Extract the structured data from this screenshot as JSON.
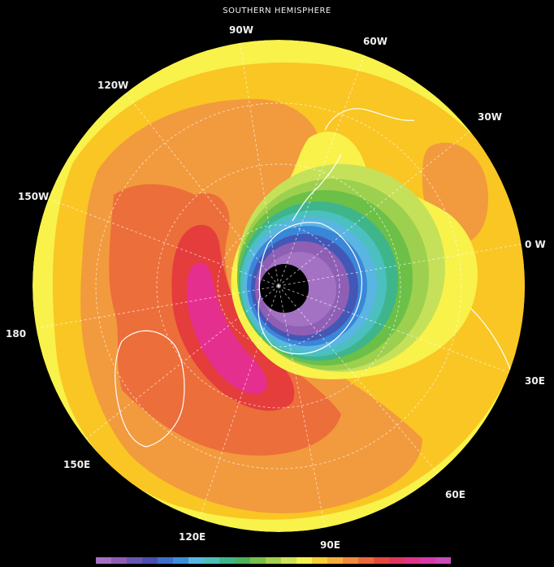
{
  "title": "SOUTHERN HEMISPHERE",
  "longitude_labels": {
    "w90": "90W",
    "w60": "60W",
    "w120": "120W",
    "w30": "30W",
    "w150": "150W",
    "w0": "0 W",
    "d180": "180",
    "e30": "30E",
    "e150": "150E",
    "e60": "60E",
    "e120": "120E",
    "e90": "90E"
  },
  "colors": {
    "background": "#000000",
    "outer_yellow": "#f8f24a",
    "gold": "#f9c624",
    "orange": "#f29a3e",
    "dark_orange": "#ec6e3a",
    "red": "#e53c3c",
    "magenta": "#e52f8f",
    "light_green": "#c5e15a",
    "green": "#6cc048",
    "teal": "#2fb69a",
    "blue": "#3a86d8",
    "indigo": "#4358b6",
    "purple": "#8f5fb5",
    "violet": "#a472c3",
    "black_hole": "#000000"
  },
  "color_scale": [
    "#a66fc4",
    "#8e5eb3",
    "#6a55b0",
    "#4a4fae",
    "#3f6fcd",
    "#3d8fd8",
    "#58b7e0",
    "#4cc0b5",
    "#40b58a",
    "#4db05a",
    "#76c04c",
    "#a4d04f",
    "#cfe25a",
    "#f4f24c",
    "#f8d033",
    "#f4ae3c",
    "#ef8c3e",
    "#ea6a3d",
    "#e44a3e",
    "#e2365e",
    "#e03488",
    "#d83aa6",
    "#c94cb9"
  ]
}
